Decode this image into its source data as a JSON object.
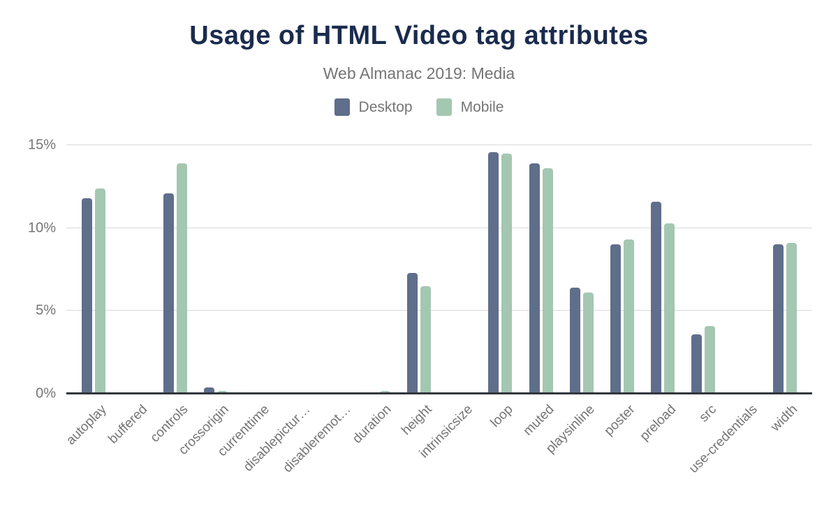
{
  "header": {
    "title": "Usage of HTML Video tag attributes",
    "subtitle": "Web Almanac 2019: Media"
  },
  "legend": {
    "items": [
      {
        "label": "Desktop",
        "color": "#5f6e8a"
      },
      {
        "label": "Mobile",
        "color": "#a4c7b2"
      }
    ]
  },
  "axes": {
    "y_ticks": [
      {
        "label": "0%",
        "value": 0
      },
      {
        "label": "5%",
        "value": 5
      },
      {
        "label": "10%",
        "value": 10
      },
      {
        "label": "15%",
        "value": 15
      }
    ]
  },
  "chart_data": {
    "type": "bar",
    "title": "Usage of HTML Video tag attributes",
    "subtitle": "Web Almanac 2019: Media",
    "categories": [
      "autoplay",
      "buffered",
      "controls",
      "crossorigin",
      "currenttime",
      "disablepictur…",
      "disableremot…",
      "duration",
      "height",
      "intrinsicsize",
      "loop",
      "muted",
      "playsinline",
      "poster",
      "preload",
      "src",
      "use-credentials",
      "width"
    ],
    "series": [
      {
        "name": "Desktop",
        "color": "#5f6e8a",
        "values": [
          11.8,
          0,
          12.1,
          0.4,
          0.1,
          0.05,
          0.05,
          0.05,
          7.3,
          0,
          14.6,
          13.9,
          6.4,
          9.0,
          11.6,
          3.6,
          0,
          9.0
        ]
      },
      {
        "name": "Mobile",
        "color": "#a4c7b2",
        "values": [
          12.4,
          0,
          13.9,
          0.15,
          0.05,
          0.05,
          0.05,
          0.15,
          6.5,
          0,
          14.5,
          13.6,
          6.1,
          9.3,
          10.3,
          4.1,
          0,
          9.1
        ]
      }
    ],
    "xlabel": "",
    "ylabel": "",
    "ylim": [
      0,
      15
    ],
    "ytick_labels": [
      "0%",
      "5%",
      "10%",
      "15%"
    ],
    "grid": true,
    "legend_position": "top"
  },
  "colors": {
    "title": "#1a2b4d",
    "muted_text": "#757575",
    "gridline": "#d9d9d9",
    "axis_line": "#33363c",
    "desktop_bar": "#5f6e8a",
    "mobile_bar": "#a4c7b2",
    "background": "#ffffff"
  }
}
